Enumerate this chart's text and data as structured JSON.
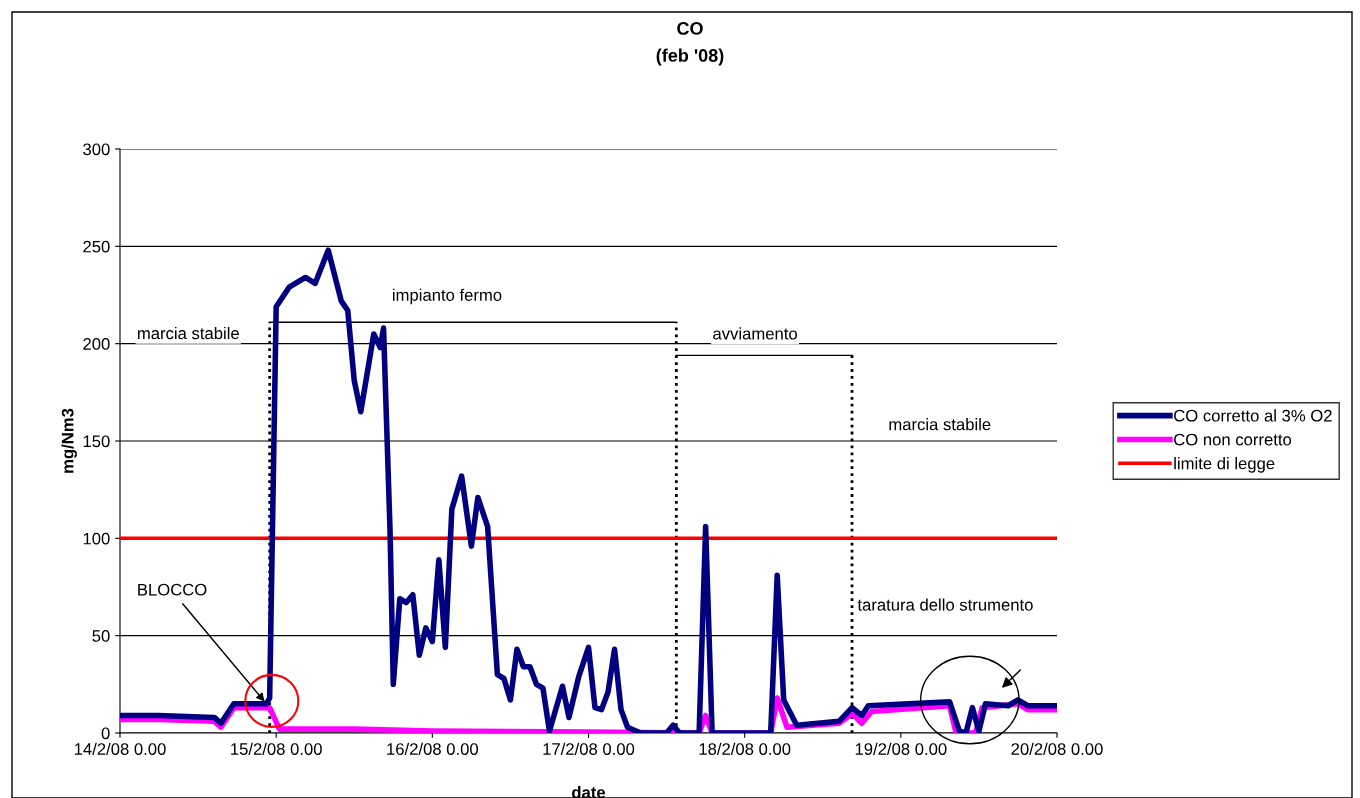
{
  "chart_data": {
    "type": "line",
    "title": "CO",
    "subtitle": "(feb '08)",
    "xlabel": "date",
    "ylabel": "mg/Nm3",
    "series": [
      {
        "name": "CO corretto al 3% O2",
        "color": "#000080",
        "x": [
          "2008-02-14T00:00",
          "2008-02-14T06:00",
          "2008-02-14T14:30",
          "2008-02-14T15:30",
          "2008-02-14T17:30",
          "2008-02-14T22:30",
          "2008-02-14T23:00",
          "2008-02-15T00:00",
          "2008-02-15T02:00",
          "2008-02-15T04:30",
          "2008-02-15T06:00",
          "2008-02-15T08:00",
          "2008-02-15T10:00",
          "2008-02-15T11:00",
          "2008-02-15T12:00",
          "2008-02-15T13:00",
          "2008-02-15T15:00",
          "2008-02-15T16:00",
          "2008-02-15T16:30",
          "2008-02-15T17:30",
          "2008-02-15T18:00",
          "2008-02-15T19:00",
          "2008-02-15T20:00",
          "2008-02-15T21:00",
          "2008-02-15T22:00",
          "2008-02-15T23:00",
          "2008-02-16T00:00",
          "2008-02-16T01:00",
          "2008-02-16T02:00",
          "2008-02-16T03:00",
          "2008-02-16T04:30",
          "2008-02-16T06:00",
          "2008-02-16T07:00",
          "2008-02-16T08:30",
          "2008-02-16T10:00",
          "2008-02-16T11:00",
          "2008-02-16T12:00",
          "2008-02-16T13:00",
          "2008-02-16T14:00",
          "2008-02-16T15:00",
          "2008-02-16T16:00",
          "2008-02-16T17:00",
          "2008-02-16T18:00",
          "2008-02-16T20:00",
          "2008-02-16T21:00",
          "2008-02-16T22:30",
          "2008-02-17T00:00",
          "2008-02-17T01:00",
          "2008-02-17T02:00",
          "2008-02-17T03:00",
          "2008-02-17T04:00",
          "2008-02-17T05:00",
          "2008-02-17T06:00",
          "2008-02-17T08:00",
          "2008-02-17T12:00",
          "2008-02-17T13:00",
          "2008-02-17T14:00",
          "2008-02-17T17:00",
          "2008-02-17T18:00",
          "2008-02-17T19:00",
          "2008-02-18T04:00",
          "2008-02-18T05:00",
          "2008-02-18T06:00",
          "2008-02-18T08:00",
          "2008-02-18T14:30",
          "2008-02-18T16:30",
          "2008-02-18T18:00",
          "2008-02-18T19:00",
          "2008-02-19T07:30",
          "2008-02-19T09:00",
          "2008-02-19T10:00",
          "2008-02-19T11:00",
          "2008-02-19T12:00",
          "2008-02-19T13:00",
          "2008-02-19T16:30",
          "2008-02-19T18:00",
          "2008-02-19T19:30",
          "2008-02-20T00:00"
        ],
        "values": [
          9,
          9,
          8,
          5,
          15,
          15,
          18,
          219,
          229,
          234,
          231,
          248,
          222,
          217,
          181,
          165,
          205,
          198,
          208,
          104,
          25,
          69,
          67,
          71,
          40,
          54,
          47,
          89,
          44,
          115,
          132,
          96,
          121,
          106,
          30,
          28,
          17,
          43,
          34,
          34,
          25,
          23,
          1,
          24,
          8,
          29,
          44,
          13,
          12,
          21,
          43,
          12,
          3,
          0,
          0,
          4,
          0,
          0,
          106,
          0,
          0,
          81,
          17,
          4,
          6,
          13,
          9,
          14,
          16,
          1,
          0,
          13,
          1,
          15,
          14,
          17,
          14,
          14
        ]
      },
      {
        "name": "CO non corretto",
        "color": "#ff00ff",
        "x": [
          "2008-02-14T00:00",
          "2008-02-14T06:00",
          "2008-02-14T14:30",
          "2008-02-14T15:30",
          "2008-02-14T17:30",
          "2008-02-14T22:30",
          "2008-02-14T23:00",
          "2008-02-15T00:30",
          "2008-02-15T12:00",
          "2008-02-16T00:00",
          "2008-02-17T00:00",
          "2008-02-17T17:00",
          "2008-02-17T18:00",
          "2008-02-17T19:00",
          "2008-02-18T04:00",
          "2008-02-18T05:00",
          "2008-02-18T06:30",
          "2008-02-18T14:30",
          "2008-02-18T16:30",
          "2008-02-18T18:00",
          "2008-02-18T19:30",
          "2008-02-19T07:30",
          "2008-02-19T08:30",
          "2008-02-19T11:30",
          "2008-02-19T12:30",
          "2008-02-19T18:00",
          "2008-02-19T19:30",
          "2008-02-20T00:00"
        ],
        "values": [
          7,
          7,
          6,
          3,
          13,
          13,
          13,
          2,
          2,
          1,
          0.5,
          0,
          9,
          0,
          0,
          18,
          3,
          5,
          10,
          5,
          11,
          14,
          0,
          0,
          13,
          15,
          12,
          12
        ]
      },
      {
        "name": "limite di legge",
        "color": "#ff0000",
        "x": [
          "2008-02-14T00:00",
          "2008-02-20T00:00"
        ],
        "values": [
          100,
          100
        ]
      }
    ],
    "xlim": [
      "2008-02-14T00:00",
      "2008-02-20T00:00"
    ],
    "xticks": [
      {
        "value": "2008-02-14T00:00",
        "label": "14/2/08 0.00"
      },
      {
        "value": "2008-02-15T00:00",
        "label": "15/2/08 0.00"
      },
      {
        "value": "2008-02-16T00:00",
        "label": "16/2/08 0.00"
      },
      {
        "value": "2008-02-17T00:00",
        "label": "17/2/08 0.00"
      },
      {
        "value": "2008-02-18T00:00",
        "label": "18/2/08 0.00"
      },
      {
        "value": "2008-02-19T00:00",
        "label": "19/2/08 0.00"
      },
      {
        "value": "2008-02-20T00:00",
        "label": "20/2/08 0.00"
      }
    ],
    "ylim": [
      0,
      300
    ],
    "yticks": [
      0,
      50,
      100,
      150,
      200,
      250,
      300
    ],
    "ref_lines": [
      {
        "axis": "x",
        "value": "2008-02-14T23:00",
        "line_style": "dotted"
      },
      {
        "axis": "x",
        "value": "2008-02-17T13:30",
        "line_style": "dotted"
      },
      {
        "axis": "x",
        "value": "2008-02-18T16:30",
        "line_style": "dotted"
      },
      {
        "axis": "y",
        "value": 211,
        "label": "impianto fermo"
      },
      {
        "axis": "y",
        "value": 194,
        "label": "avviamento"
      }
    ],
    "grid": "y",
    "legend": "right",
    "marker": "none",
    "line_style": "solid",
    "annotations": [
      "marcia stabile",
      "marcia stabile",
      "taratura dello strumento",
      {
        "text": "BLOCCO",
        "x": "2008-02-14T22:30",
        "y": 15
      }
    ]
  }
}
